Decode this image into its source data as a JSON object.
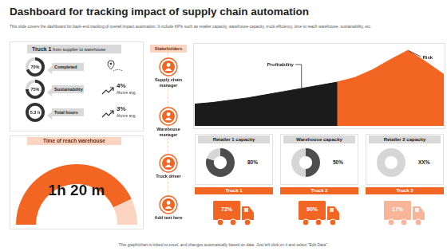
{
  "header": {
    "title": "Dashboard for tracking impact of supply chain automation",
    "subtitle": "This slide covers the dashboard for back-end tracking of overall impact automation. It include KPIs such as retailer capacity, warehouse capacity, truck efficiency, time to reach warehouse, sustainability, etc."
  },
  "truck_panel": {
    "title": "Truck 1",
    "subtitle": "from supplier to warehouse",
    "items": [
      {
        "label": "Completed",
        "chart_data": {
          "type": "doughnut",
          "values": [
            70
          ],
          "value_labels": [
            "70%"
          ],
          "ylim": [
            0,
            100
          ],
          "color": "#333333"
        }
      },
      {
        "label": "Sustainability",
        "chart_data": {
          "type": "doughnut",
          "values": [
            75
          ],
          "value_labels": [
            "75%"
          ],
          "ylim": [
            0,
            100
          ],
          "color": "#333333"
        },
        "change": "4%",
        "note": "Above avg."
      },
      {
        "label": "Total hours",
        "chart_data": {
          "type": "doughnut",
          "values": [
            5.3
          ],
          "value_labels": [
            "5.3 h"
          ],
          "color": "#333333"
        },
        "change": "3%",
        "note": "Above avg."
      }
    ]
  },
  "time_panel": {
    "title": "Time of reach warehouse",
    "value": "1h 20 m"
  },
  "stakeholders": {
    "title": "Stakeholders",
    "items": [
      "Supply chain manager",
      "Warehouse manager",
      "Truck driver",
      "Add text here"
    ]
  },
  "chart_data": [
    {
      "type": "area",
      "categories": [
        null,
        null,
        null,
        null,
        null,
        null,
        null,
        null,
        null,
        null,
        null,
        null,
        null,
        null,
        null
      ],
      "series": [
        {
          "name": "Risk",
          "color": "#f26522",
          "values": [
            null,
            null,
            null,
            null,
            null,
            null,
            null,
            null,
            56,
            62,
            72,
            85,
            97,
            82,
            66
          ]
        },
        {
          "name": "Profitability",
          "color": "#1b1b1b",
          "values": [
            28,
            30,
            33,
            36,
            40,
            44,
            48,
            52,
            56,
            60,
            66,
            70,
            62,
            58,
            64
          ]
        }
      ],
      "ylim": [
        0,
        100
      ],
      "grid": false,
      "tick_labels": false
    },
    {
      "type": "doughnut",
      "title": "Retailer 1 capacity",
      "values": [
        80
      ],
      "value_labels": [
        "80%"
      ],
      "ylim": [
        0,
        100
      ],
      "color": "#4d4d4d"
    },
    {
      "type": "doughnut",
      "title": "Warehouse capacity",
      "values": [
        50
      ],
      "value_labels": [
        "50%"
      ],
      "ylim": [
        0,
        100
      ],
      "color": "#4d4d4d"
    },
    {
      "type": "doughnut",
      "title": "Retailer 2 capacity",
      "values": [
        null
      ],
      "value_labels": [
        "XX%"
      ],
      "ylim": [
        0,
        100
      ],
      "color": "#4d4d4d"
    }
  ],
  "trucks": [
    {
      "label": "Truck 1",
      "value": "72%",
      "color": "#f26522"
    },
    {
      "label": "Truck 2",
      "value": "90%",
      "color": "#f26522"
    },
    {
      "label": "Truck 3",
      "value": "17%",
      "color": "#f8b597"
    }
  ],
  "footer": "This graph/chart is linked to excel, and changes automatically based on data. Just left click on it and select \"Edit Data\"."
}
